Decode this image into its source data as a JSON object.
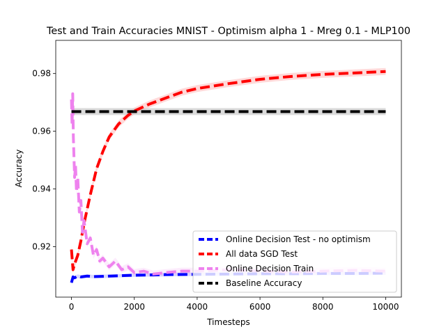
{
  "chart_data": {
    "type": "line",
    "title": "Test and Train Accuracies MNIST - Optimism alpha 1 - Mreg 0.1 - MLP100",
    "xlabel": "Timesteps",
    "ylabel": "Accuracy",
    "xlim": [
      -500,
      10500
    ],
    "ylim": [
      0.9025,
      0.9915
    ],
    "xticks": [
      0,
      2000,
      4000,
      6000,
      8000,
      10000
    ],
    "yticks": [
      0.92,
      0.94,
      0.96,
      0.98
    ],
    "xtick_labels": [
      "0",
      "2000",
      "4000",
      "6000",
      "8000",
      "10000"
    ],
    "ytick_labels": [
      "0.92",
      "0.94",
      "0.96",
      "0.98"
    ],
    "grid": false,
    "legend_position": "lower right",
    "series": [
      {
        "name": "Online Decision Test - no optimism",
        "color": "#0000ff",
        "style": "dashed",
        "x": [
          0,
          50,
          100,
          200,
          300,
          500,
          700,
          1000,
          1500,
          2000,
          2500,
          3000,
          4000,
          5000,
          6000,
          7000,
          8000,
          9000,
          10000
        ],
        "y": [
          0.9075,
          0.9095,
          0.9092,
          0.9098,
          0.9095,
          0.9098,
          0.9096,
          0.9097,
          0.9099,
          0.9101,
          0.9102,
          0.9103,
          0.9104,
          0.9105,
          0.9106,
          0.9106,
          0.9107,
          0.9107,
          0.9108
        ],
        "band": 0.0006
      },
      {
        "name": "All data SGD Test",
        "color": "#ff0000",
        "style": "dashed",
        "x": [
          0,
          50,
          100,
          200,
          300,
          400,
          500,
          600,
          800,
          1000,
          1200,
          1500,
          1800,
          2000,
          2500,
          3000,
          3500,
          4000,
          5000,
          6000,
          7000,
          8000,
          9000,
          10000
        ],
        "y": [
          0.919,
          0.912,
          0.914,
          0.917,
          0.922,
          0.928,
          0.933,
          0.938,
          0.947,
          0.953,
          0.958,
          0.9625,
          0.9655,
          0.967,
          0.9695,
          0.9715,
          0.9735,
          0.9748,
          0.9765,
          0.978,
          0.979,
          0.9797,
          0.9802,
          0.9807
        ],
        "band": 0.0012
      },
      {
        "name": "Online Decision Train",
        "color": "#ee82ee",
        "style": "dashed",
        "x": [
          0,
          20,
          40,
          60,
          80,
          100,
          130,
          160,
          200,
          250,
          300,
          350,
          400,
          500,
          600,
          700,
          800,
          900,
          1000,
          1200,
          1400,
          1600,
          1800,
          2000,
          2300,
          2600,
          3000,
          3500,
          4000,
          5000,
          6000,
          7000,
          8000,
          9000,
          10000
        ],
        "y": [
          0.971,
          0.962,
          0.973,
          0.958,
          0.951,
          0.944,
          0.948,
          0.939,
          0.944,
          0.932,
          0.936,
          0.925,
          0.929,
          0.921,
          0.923,
          0.917,
          0.919,
          0.915,
          0.916,
          0.913,
          0.915,
          0.912,
          0.913,
          0.911,
          0.9115,
          0.9105,
          0.911,
          0.9115,
          0.9115,
          0.912,
          0.9115,
          0.9112,
          0.9115,
          0.9118,
          0.9115
        ],
        "band": 0.0012
      },
      {
        "name": "Baseline Accuracy",
        "color": "#000000",
        "style": "dashed",
        "x": [
          0,
          10000
        ],
        "y": [
          0.9668,
          0.9668
        ],
        "band": 0.0012
      }
    ]
  }
}
